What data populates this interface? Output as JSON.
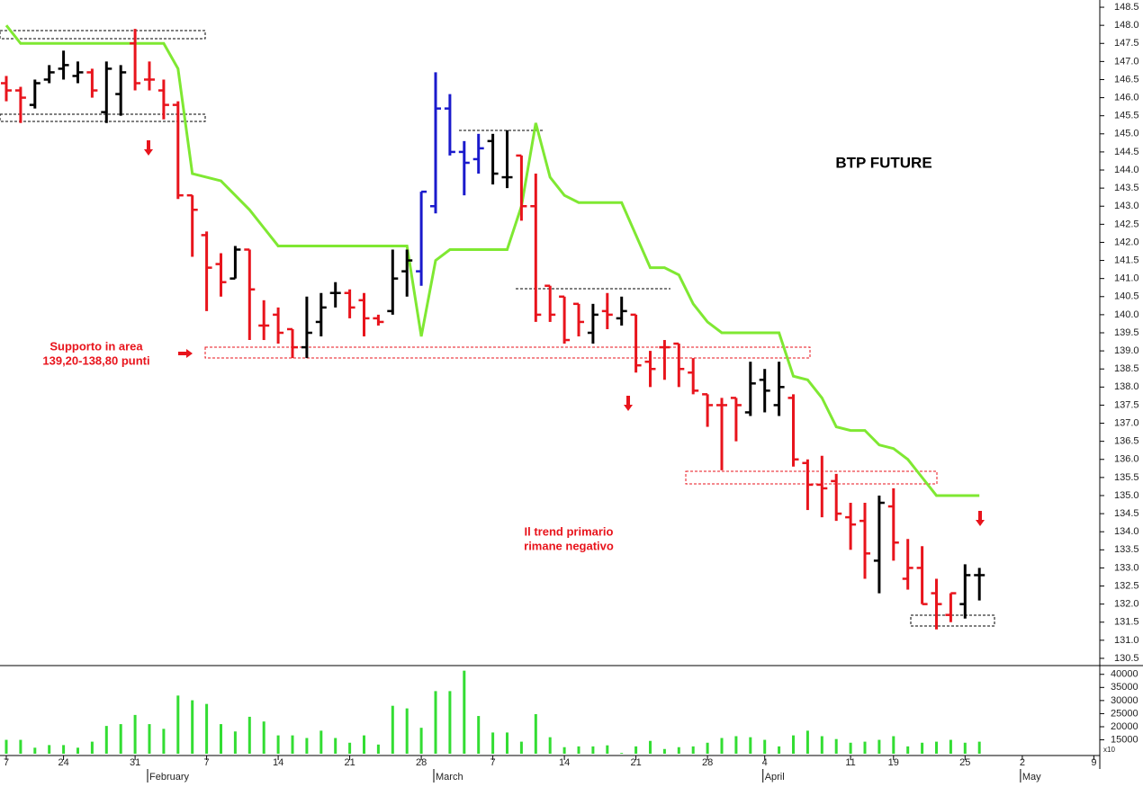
{
  "chart_data": {
    "type": "ohlc",
    "title": "BTP FUTURE",
    "categories": [
      "7",
      null,
      null,
      null,
      "24",
      null,
      null,
      null,
      null,
      "31",
      null,
      null,
      null,
      null,
      "7",
      null,
      null,
      null,
      null,
      "14",
      null,
      null,
      null,
      null,
      "21",
      null,
      null,
      null,
      null,
      "28",
      null,
      null,
      null,
      null,
      "7",
      null,
      null,
      null,
      null,
      "14",
      null,
      null,
      null,
      null,
      "21",
      null,
      null,
      null,
      null,
      "28",
      null,
      null,
      null,
      "4",
      null,
      null,
      null,
      null,
      null,
      "11",
      null,
      null,
      "19",
      null,
      null,
      null,
      null,
      "25",
      null,
      null,
      null,
      "2",
      null,
      null,
      null,
      null,
      "9"
    ],
    "month_labels": [
      null,
      null,
      null,
      null,
      null,
      null,
      null,
      null,
      null,
      null,
      "February",
      null,
      null,
      null,
      null,
      null,
      null,
      null,
      null,
      null,
      null,
      null,
      null,
      null,
      null,
      null,
      null,
      null,
      null,
      null,
      "March",
      null,
      null,
      null,
      null,
      null,
      null,
      null,
      null,
      null,
      null,
      null,
      null,
      null,
      null,
      null,
      null,
      null,
      null,
      null,
      null,
      null,
      null,
      "April",
      null,
      null,
      null,
      null,
      null,
      null,
      null,
      null,
      null,
      null,
      null,
      null,
      null,
      null,
      null,
      null,
      null,
      "May",
      null,
      null,
      null,
      null,
      null
    ],
    "open": [
      146.4,
      146.2,
      145.8,
      146.5,
      146.8,
      146.6,
      146.7,
      145.6,
      146.1,
      147.5,
      146.5,
      146.2,
      145.8,
      143.3,
      142.2,
      141.4,
      141.0,
      141.8,
      139.7,
      140.0,
      139.6,
      139.1,
      139.8,
      140.6,
      140.6,
      140.4,
      139.9,
      140.1,
      141.2,
      141.2,
      143.0,
      145.7,
      144.5,
      144.3,
      144.8,
      143.8,
      144.4,
      143.0,
      140.8,
      140.5,
      140.3,
      139.5,
      140.1,
      139.9,
      140.0,
      138.7,
      139.1,
      139.2,
      138.4,
      137.8,
      137.5,
      137.7,
      137.3,
      138.2,
      137.5,
      137.7,
      135.9,
      135.3,
      135.4,
      134.4,
      134.3,
      133.2,
      134.7,
      132.7,
      133.0,
      132.3,
      131.7,
      132.0,
      132.8,
      null,
      null,
      null,
      null,
      null,
      null,
      null,
      null
    ],
    "high": [
      146.6,
      146.3,
      146.5,
      146.9,
      147.3,
      147.0,
      146.8,
      147.0,
      146.9,
      147.9,
      147.0,
      146.5,
      145.9,
      143.3,
      142.3,
      141.7,
      141.9,
      141.8,
      140.4,
      140.2,
      139.6,
      140.5,
      140.6,
      140.9,
      140.7,
      140.6,
      140.0,
      141.8,
      141.8,
      143.4,
      146.7,
      146.1,
      144.8,
      145.0,
      145.0,
      145.1,
      144.4,
      143.9,
      140.8,
      140.5,
      140.3,
      140.3,
      140.6,
      140.5,
      140.0,
      139.0,
      139.3,
      139.2,
      138.8,
      137.8,
      137.7,
      137.7,
      138.7,
      138.5,
      138.7,
      137.8,
      136.0,
      136.1,
      135.6,
      134.8,
      134.8,
      135.0,
      135.2,
      133.8,
      133.6,
      132.7,
      132.3,
      133.1,
      133.0,
      null,
      null,
      null,
      null,
      null,
      null,
      null,
      null
    ],
    "low": [
      145.9,
      145.3,
      145.7,
      146.4,
      146.5,
      146.4,
      146.0,
      145.3,
      145.5,
      146.2,
      146.2,
      145.4,
      143.2,
      141.6,
      140.1,
      140.5,
      141.0,
      139.3,
      139.3,
      139.2,
      138.8,
      138.8,
      139.4,
      140.2,
      139.9,
      139.4,
      139.7,
      140.0,
      140.5,
      140.8,
      142.8,
      144.4,
      143.3,
      143.9,
      143.6,
      143.5,
      142.6,
      139.8,
      139.8,
      139.2,
      139.4,
      139.2,
      139.6,
      139.7,
      138.4,
      138.0,
      138.2,
      138.0,
      137.8,
      136.9,
      135.7,
      136.5,
      137.2,
      137.3,
      137.2,
      135.8,
      134.6,
      134.4,
      134.3,
      133.5,
      132.7,
      132.3,
      133.2,
      132.4,
      132.0,
      131.3,
      131.5,
      131.6,
      132.1,
      null,
      null,
      null,
      null,
      null,
      null,
      null,
      null
    ],
    "close": [
      146.2,
      146.0,
      146.4,
      146.7,
      146.9,
      146.7,
      146.2,
      146.8,
      146.7,
      146.4,
      146.5,
      145.8,
      143.3,
      142.9,
      141.3,
      140.9,
      141.8,
      140.7,
      139.7,
      139.5,
      139.1,
      139.5,
      140.2,
      140.6,
      140.2,
      139.9,
      139.8,
      141.0,
      141.5,
      143.4,
      145.7,
      144.5,
      144.2,
      144.6,
      143.9,
      143.8,
      143.0,
      140.0,
      140.0,
      139.3,
      139.8,
      140.0,
      140.0,
      140.1,
      138.6,
      138.5,
      139.1,
      138.5,
      137.9,
      137.5,
      137.5,
      137.5,
      138.1,
      137.9,
      138.0,
      136.0,
      135.3,
      135.2,
      134.5,
      134.2,
      133.4,
      134.8,
      133.7,
      133.0,
      132.0,
      132.0,
      132.3,
      132.8,
      132.8,
      null,
      null,
      null,
      null,
      null,
      null,
      null,
      null
    ],
    "bar_colors": [
      "#e8141c",
      "#e8141c",
      "#000000",
      "#000000",
      "#000000",
      "#000000",
      "#e8141c",
      "#000000",
      "#000000",
      "#e8141c",
      "#e8141c",
      "#e8141c",
      "#e8141c",
      "#e8141c",
      "#e8141c",
      "#e8141c",
      "#000000",
      "#e8141c",
      "#e8141c",
      "#e8141c",
      "#e8141c",
      "#000000",
      "#000000",
      "#000000",
      "#e8141c",
      "#e8141c",
      "#e8141c",
      "#000000",
      "#000000",
      "#1a1acc",
      "#1a1acc",
      "#1a1acc",
      "#1a1acc",
      "#1a1acc",
      "#000000",
      "#000000",
      "#e8141c",
      "#e8141c",
      "#e8141c",
      "#e8141c",
      "#e8141c",
      "#000000",
      "#e8141c",
      "#000000",
      "#e8141c",
      "#e8141c",
      "#e8141c",
      "#e8141c",
      "#e8141c",
      "#e8141c",
      "#e8141c",
      "#e8141c",
      "#000000",
      "#000000",
      "#000000",
      "#e8141c",
      "#e8141c",
      "#e8141c",
      "#e8141c",
      "#e8141c",
      "#e8141c",
      "#000000",
      "#e8141c",
      "#e8141c",
      "#e8141c",
      "#e8141c",
      "#e8141c",
      "#000000",
      "#000000",
      null,
      null,
      null,
      null,
      null,
      null,
      null,
      null
    ],
    "stop_line": {
      "color": "#7fe832",
      "values": [
        148.0,
        147.5,
        147.5,
        147.5,
        147.5,
        147.5,
        147.5,
        147.5,
        147.5,
        147.5,
        147.5,
        147.5,
        146.8,
        143.9,
        143.8,
        143.7,
        143.3,
        142.9,
        142.4,
        141.9,
        141.9,
        141.9,
        141.9,
        141.9,
        141.9,
        141.9,
        141.9,
        141.9,
        141.9,
        139.4,
        141.5,
        141.8,
        141.8,
        141.8,
        141.8,
        141.8,
        143.0,
        145.3,
        143.8,
        143.3,
        143.1,
        143.1,
        143.1,
        143.1,
        142.2,
        141.3,
        141.3,
        141.1,
        140.3,
        139.8,
        139.5,
        139.5,
        139.5,
        139.5,
        139.5,
        138.3,
        138.2,
        137.7,
        136.9,
        136.8,
        136.8,
        136.4,
        136.3,
        136.0,
        135.5,
        135.0,
        135.0,
        135.0,
        135.0,
        null,
        null,
        null,
        null,
        null,
        null,
        null,
        null
      ]
    },
    "ylim": [
      130.3,
      148.7
    ],
    "yticks": [
      130.5,
      {
        "value": 131,
        "label": "131.0"
      },
      131.5,
      {
        "value": 132,
        "label": "132.0"
      },
      132.5,
      {
        "value": 133,
        "label": "133.0"
      },
      133.5,
      {
        "value": 134,
        "label": "134.0"
      },
      134.5,
      {
        "value": 135,
        "label": "135.0"
      },
      135.5,
      {
        "value": 136,
        "label": "136.0"
      },
      136.5,
      {
        "value": 137,
        "label": "137.0"
      },
      137.5,
      {
        "value": 138,
        "label": "138.0"
      },
      138.5,
      {
        "value": 139,
        "label": "139.0"
      },
      139.5,
      {
        "value": 140,
        "label": "140.0"
      },
      140.5,
      {
        "value": 141,
        "label": "141.0"
      },
      141.5,
      {
        "value": 142,
        "label": "142.0"
      },
      142.5,
      {
        "value": 143,
        "label": "143.0"
      },
      143.5,
      {
        "value": 144,
        "label": "144.0"
      },
      144.5,
      {
        "value": 145,
        "label": "145.0"
      },
      145.5,
      {
        "value": 146,
        "label": "146.0"
      },
      146.5,
      {
        "value": 147,
        "label": "147.0"
      },
      147.5,
      {
        "value": 148,
        "label": "148.0"
      },
      148.5
    ],
    "volume": {
      "color": "#33dd33",
      "axis_note": "x10",
      "ylim": [
        9700,
        43000
      ],
      "yticks": [
        15000,
        20000,
        25000,
        30000,
        35000,
        40000
      ],
      "values": [
        15000,
        15000,
        12000,
        13000,
        13000,
        12000,
        14300,
        20300,
        21000,
        24500,
        21000,
        19200,
        31900,
        30100,
        28700,
        21000,
        18200,
        23800,
        22000,
        16700,
        16700,
        15700,
        18500,
        15700,
        13900,
        16700,
        13200,
        28000,
        27000,
        19600,
        33600,
        33600,
        41400,
        24100,
        17800,
        17800,
        14300,
        24800,
        16000,
        12200,
        12500,
        12500,
        12900,
        10000,
        12500,
        14600,
        11500,
        12200,
        12500,
        13900,
        15700,
        16400,
        16000,
        15000,
        12500,
        16700,
        18500,
        16400,
        15300,
        13900,
        14300,
        15000,
        16400,
        12500,
        13900,
        14300,
        15000,
        13900,
        14300,
        null,
        null,
        null,
        null,
        null,
        null,
        null,
        null
      ]
    },
    "annotations": [
      {
        "lines": [
          "Supporto in area",
          "139,20-138,80 punti"
        ]
      },
      {
        "lines": [
          "Il trend primario",
          "rimane negativo"
        ]
      }
    ]
  }
}
